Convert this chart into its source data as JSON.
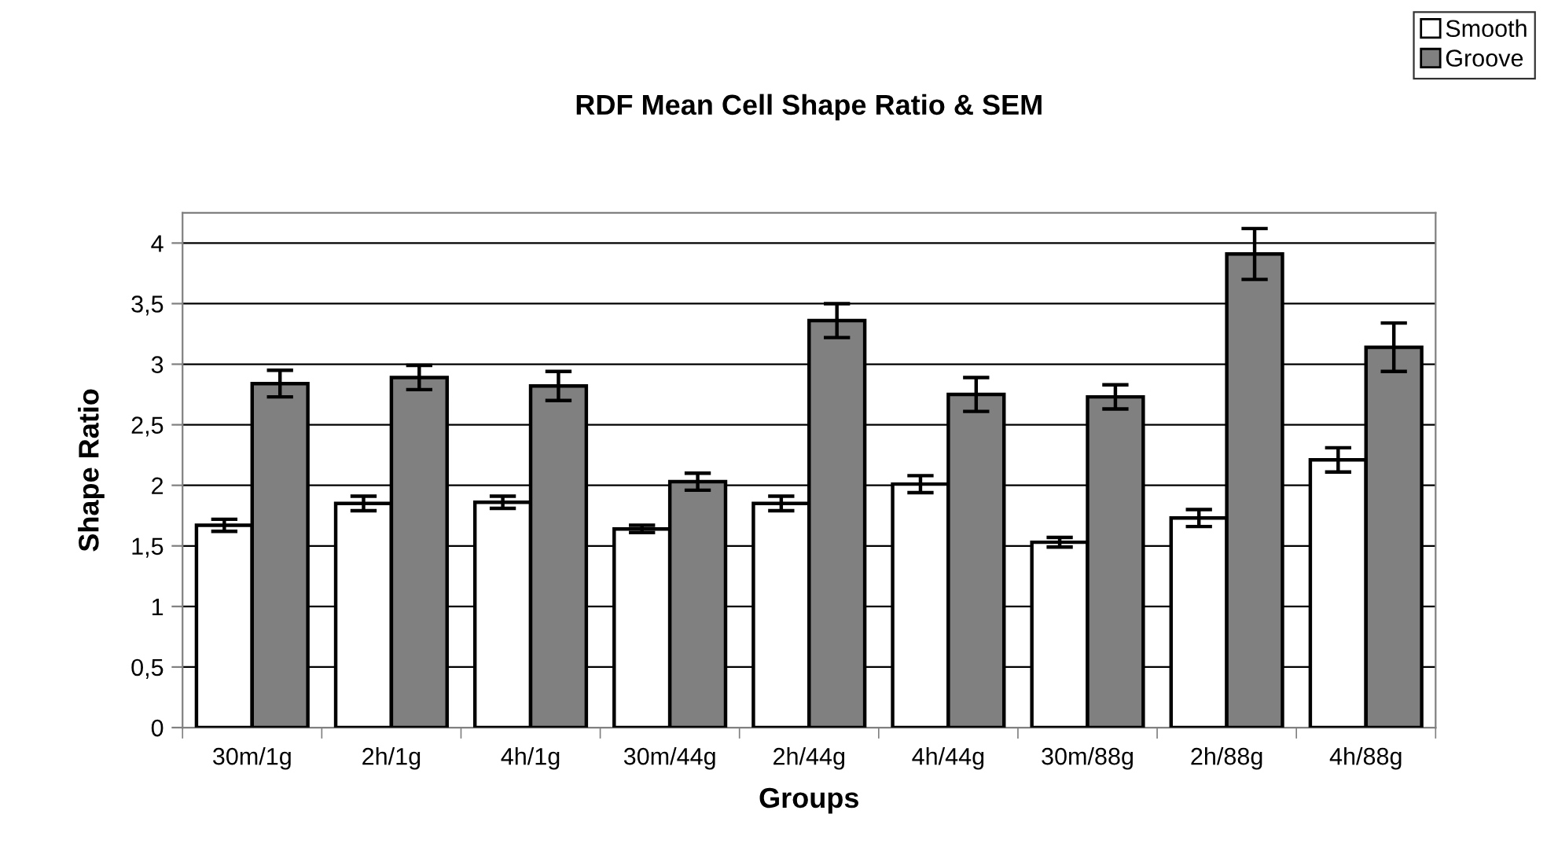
{
  "chart_data": {
    "type": "bar",
    "title": "RDF Mean Cell Shape Ratio & SEM",
    "xlabel": "Groups",
    "ylabel": "Shape Ratio",
    "categories": [
      "30m/1g",
      "2h/1g",
      "4h/1g",
      "30m/44g",
      "2h/44g",
      "4h/44g",
      "30m/88g",
      "2h/88g",
      "4h/88g"
    ],
    "series": [
      {
        "name": "Smooth",
        "color": "#ffffff",
        "values": [
          1.67,
          1.85,
          1.86,
          1.64,
          1.85,
          2.01,
          1.53,
          1.73,
          2.21
        ],
        "errors": [
          0.05,
          0.06,
          0.05,
          0.03,
          0.06,
          0.07,
          0.04,
          0.07,
          0.1
        ]
      },
      {
        "name": "Groove",
        "color": "#808080",
        "values": [
          2.84,
          2.89,
          2.82,
          2.03,
          3.36,
          2.75,
          2.73,
          3.91,
          3.14
        ],
        "errors": [
          0.11,
          0.1,
          0.12,
          0.07,
          0.14,
          0.14,
          0.1,
          0.21,
          0.2
        ]
      }
    ],
    "ylim": [
      0,
      4.25
    ],
    "yticks": [
      0,
      {
        "value": 0.5,
        "label": "0,5"
      },
      1,
      {
        "value": 1.5,
        "label": "1,5"
      },
      2,
      {
        "value": 2.5,
        "label": "2,5"
      },
      3,
      {
        "value": 3.5,
        "label": "3,5"
      },
      4
    ],
    "grid": "y",
    "legend": "top right"
  }
}
